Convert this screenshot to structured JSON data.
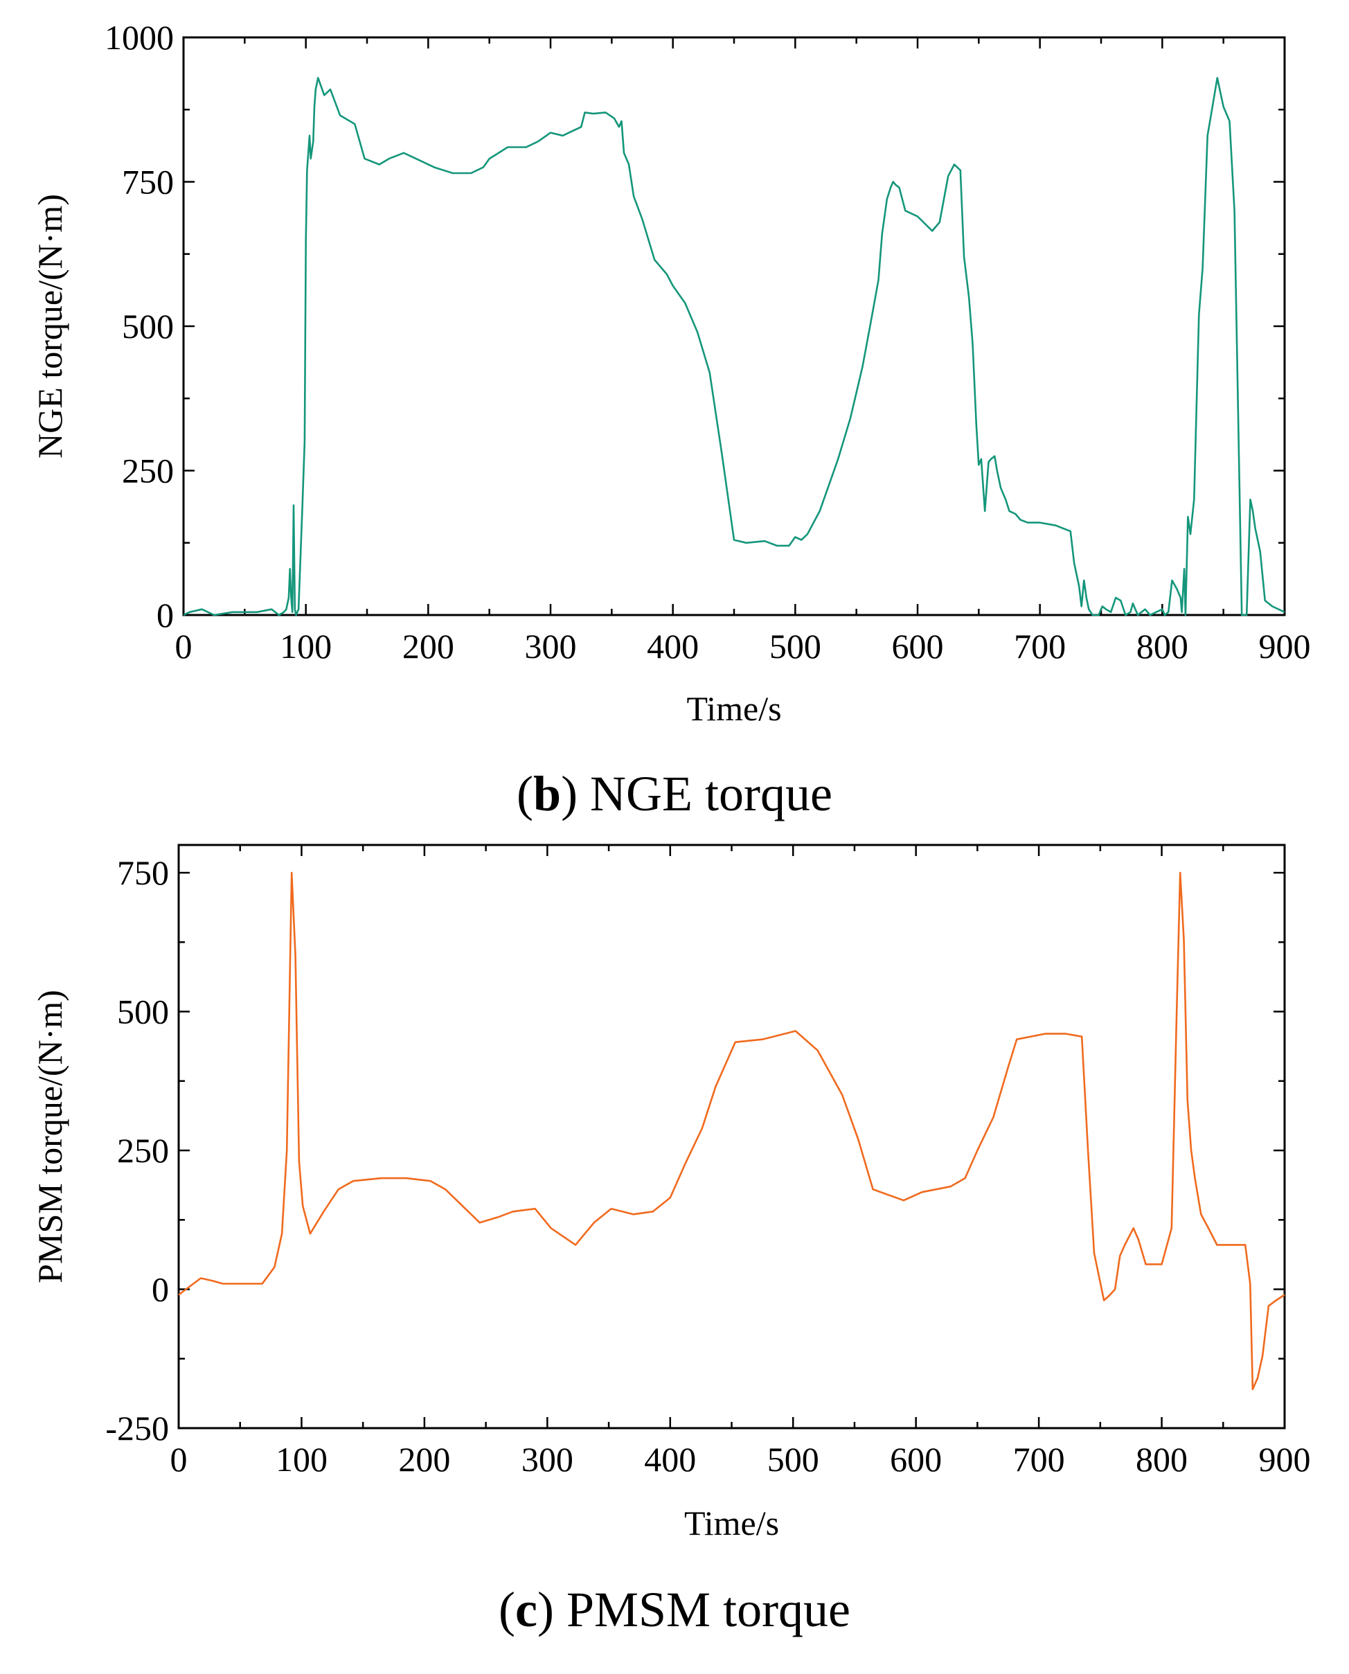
{
  "chart_data": [
    {
      "type": "line",
      "caption_letter": "b",
      "caption_text": " NGE torque",
      "xlabel": "Time/s",
      "ylabel": "NGE torque/(N·m)",
      "xlim": [
        0,
        900
      ],
      "ylim": [
        0,
        1000
      ],
      "xticks": [
        0,
        100,
        200,
        300,
        400,
        500,
        600,
        700,
        800,
        900
      ],
      "yticks": [
        0,
        250,
        500,
        750,
        1000
      ],
      "grid": false,
      "series": [
        {
          "name": "NGE torque",
          "color": "#14967a",
          "x": [
            0,
            5,
            15,
            25,
            40,
            60,
            72,
            78,
            82,
            84,
            86,
            87,
            88,
            89,
            90,
            91,
            92,
            93,
            94,
            97,
            99,
            100,
            101,
            103,
            104,
            106,
            107,
            108,
            110,
            115,
            120,
            128,
            140,
            148,
            160,
            168,
            180,
            190,
            205,
            220,
            235,
            245,
            250,
            265,
            280,
            285,
            290,
            300,
            310,
            320,
            325,
            328,
            335,
            345,
            352,
            356,
            358,
            360,
            364,
            368,
            375,
            385,
            395,
            400,
            410,
            420,
            430,
            440,
            446,
            450,
            460,
            475,
            485,
            495,
            500,
            505,
            510,
            520,
            535,
            545,
            555,
            562,
            568,
            571,
            575,
            578,
            580,
            582,
            585,
            590,
            600,
            612,
            618,
            625,
            630,
            635,
            638,
            642,
            645,
            648,
            650,
            652,
            655,
            658,
            660,
            663,
            665,
            668,
            672,
            675,
            680,
            684,
            690,
            700,
            713,
            725,
            728,
            732,
            734,
            736,
            738,
            740,
            743,
            746,
            748,
            751,
            754,
            758,
            762,
            766,
            770,
            774,
            776,
            780,
            783,
            786,
            790,
            795,
            800,
            802,
            805,
            808,
            812,
            815,
            816,
            818,
            819,
            821,
            823,
            826,
            830,
            833,
            837,
            841,
            845,
            848,
            850,
            855,
            859,
            862,
            865,
            869,
            872,
            874,
            876,
            880,
            884,
            890,
            900
          ],
          "y": [
            0,
            5,
            10,
            0,
            5,
            5,
            10,
            0,
            5,
            10,
            30,
            80,
            30,
            5,
            190,
            10,
            0,
            5,
            10,
            180,
            300,
            650,
            770,
            830,
            790,
            820,
            880,
            910,
            930,
            900,
            910,
            865,
            850,
            790,
            780,
            790,
            800,
            790,
            775,
            765,
            765,
            775,
            790,
            810,
            810,
            815,
            820,
            835,
            830,
            840,
            845,
            870,
            868,
            870,
            860,
            845,
            855,
            800,
            780,
            725,
            685,
            615,
            590,
            570,
            540,
            490,
            420,
            280,
            190,
            130,
            125,
            128,
            120,
            120,
            135,
            130,
            140,
            180,
            270,
            340,
            430,
            510,
            580,
            660,
            720,
            740,
            750,
            745,
            740,
            700,
            690,
            665,
            680,
            760,
            780,
            770,
            620,
            550,
            470,
            330,
            260,
            270,
            180,
            265,
            270,
            275,
            250,
            220,
            200,
            180,
            175,
            165,
            160,
            160,
            155,
            145,
            90,
            50,
            15,
            60,
            30,
            10,
            0,
            0,
            0,
            15,
            10,
            5,
            30,
            25,
            0,
            5,
            20,
            0,
            5,
            10,
            0,
            5,
            10,
            0,
            5,
            60,
            45,
            30,
            5,
            80,
            0,
            170,
            140,
            200,
            520,
            600,
            830,
            880,
            930,
            900,
            880,
            855,
            700,
            350,
            0,
            0,
            200,
            180,
            150,
            110,
            25,
            15,
            5
          ]
        }
      ]
    },
    {
      "type": "line",
      "caption_letter": "c",
      "caption_text": " PMSM torque",
      "xlabel": "Time/s",
      "ylabel": "PMSM torque/(N·m)",
      "xlim": [
        0,
        900
      ],
      "ylim": [
        -250,
        800
      ],
      "xticks": [
        0,
        100,
        200,
        300,
        400,
        500,
        600,
        700,
        800,
        900
      ],
      "yticks": [
        -250,
        0,
        250,
        500,
        750
      ],
      "grid": false,
      "series": [
        {
          "name": "PMSM torque",
          "color": "#f06a1e",
          "x": [
            0,
            6,
            18,
            28,
            36,
            48,
            58,
            68,
            78,
            84,
            88,
            90,
            92,
            94,
            95,
            98,
            101,
            107,
            118,
            130,
            142,
            165,
            185,
            205,
            217,
            245,
            260,
            272,
            290,
            303,
            323,
            338,
            352,
            370,
            386,
            400,
            412,
            426,
            437,
            453,
            475,
            502,
            520,
            540,
            553,
            565,
            590,
            605,
            628,
            640,
            650,
            663,
            675,
            682,
            705,
            722,
            735,
            740,
            745,
            753,
            758,
            762,
            766,
            770,
            777,
            781,
            787,
            795,
            800,
            808,
            812,
            815,
            818,
            821,
            824,
            827,
            832,
            838,
            845,
            858,
            868,
            872,
            874,
            876,
            878,
            882,
            887,
            893,
            900
          ],
          "y": [
            -10,
            0,
            20,
            15,
            10,
            10,
            10,
            10,
            40,
            100,
            250,
            500,
            750,
            650,
            600,
            230,
            150,
            100,
            140,
            180,
            195,
            200,
            200,
            195,
            180,
            120,
            130,
            140,
            145,
            110,
            80,
            120,
            145,
            135,
            140,
            165,
            225,
            290,
            365,
            445,
            450,
            465,
            430,
            350,
            270,
            180,
            160,
            175,
            185,
            200,
            250,
            310,
            400,
            450,
            460,
            460,
            455,
            250,
            65,
            -20,
            -10,
            0,
            60,
            80,
            110,
            90,
            45,
            45,
            45,
            110,
            480,
            750,
            630,
            340,
            250,
            200,
            135,
            110,
            80,
            80,
            80,
            10,
            -180,
            -170,
            -160,
            -120,
            -30,
            -20,
            -10
          ]
        }
      ]
    }
  ]
}
